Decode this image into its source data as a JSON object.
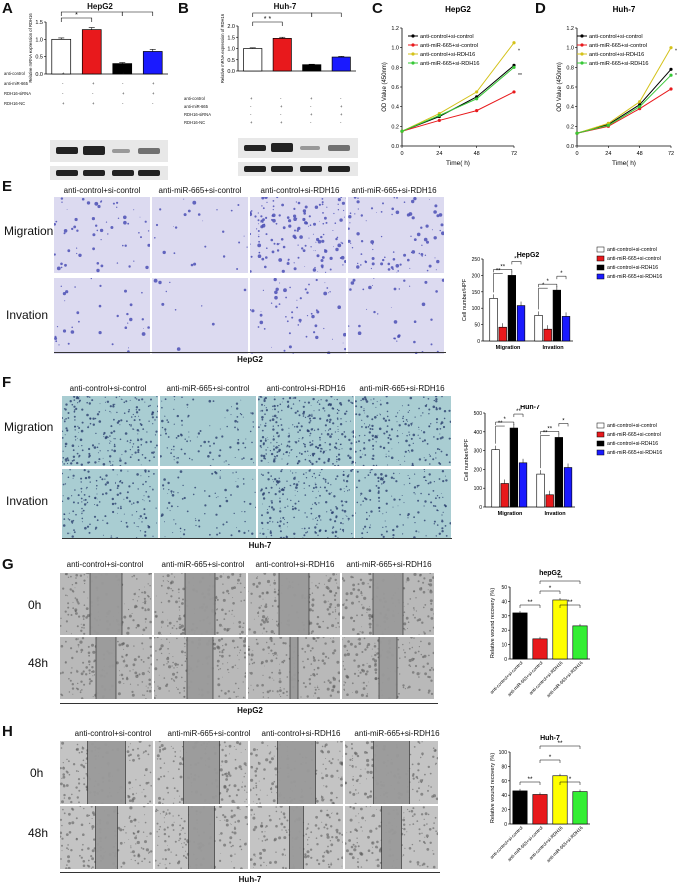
{
  "panels": {
    "A": {
      "letter": "A",
      "title": "HepG2",
      "ylabel": "Relative mRNA expression of RDH16",
      "yticks": [
        "0.0",
        "0.5",
        "1.0",
        "1.5"
      ],
      "row_labels": [
        "anti-control",
        "anti-miR-665",
        "RDH16-siRNA",
        "RDH16-NC"
      ],
      "grid": [
        [
          "+",
          "-",
          "+",
          "-"
        ],
        [
          "-",
          "+",
          "-",
          "+"
        ],
        [
          "-",
          "-",
          "+",
          "+"
        ],
        [
          "+",
          "+",
          "-",
          "-"
        ]
      ],
      "sig": [
        "*",
        "* * *",
        "* *"
      ]
    },
    "B": {
      "letter": "B",
      "title": "Huh-7",
      "ylabel": "Relative mRNA expression of RDH16",
      "yticks": [
        "0.0",
        "0.5",
        "1.0",
        "1.5",
        "2.0"
      ],
      "row_labels": [
        "anti-control",
        "anti-miR-665",
        "RDH16-siRNA",
        "RDH16-NC"
      ],
      "grid": [
        [
          "+",
          "-",
          "+",
          "-"
        ],
        [
          "-",
          "+",
          "-",
          "+"
        ],
        [
          "-",
          "-",
          "+",
          "+"
        ],
        [
          "+",
          "+",
          "-",
          "-"
        ]
      ],
      "sig": [
        "* *",
        "* *",
        "* * * *"
      ]
    },
    "C": {
      "letter": "C",
      "title": "HepG2"
    },
    "D": {
      "letter": "D",
      "title": "Huh-7"
    },
    "E": {
      "letter": "E",
      "conditions": [
        "anti-control+si-control",
        "anti-miR-665+si-control",
        "anti-control+si-RDH16",
        "anti-miR-665+si-RDH16"
      ],
      "rows": [
        "Migration",
        "Invation"
      ],
      "footer": "HepG2",
      "bar_title": "HepG2"
    },
    "F": {
      "letter": "F",
      "conditions": [
        "anti-control+si-control",
        "anti-miR-665+si-control",
        "anti-control+si-RDH16",
        "anti-miR-665+si-RDH16"
      ],
      "rows": [
        "Migration",
        "Invation"
      ],
      "footer": "Huh-7",
      "bar_title": "Huh-7"
    },
    "G": {
      "letter": "G",
      "conditions": [
        "anti-control+si-control",
        "anti-miR-665+si-control",
        "anti-control+si-RDH16",
        "anti-miR-665+si-RDH16"
      ],
      "rows": [
        "0h",
        "48h"
      ],
      "footer": "HepG2",
      "bar_title": "hepG2"
    },
    "H": {
      "letter": "H",
      "conditions": [
        "anti-control+si-control",
        "anti-miR-665+si-control",
        "anti-control+si-RDH16",
        "anti-miR-665+si-RDH16"
      ],
      "rows": [
        "0h",
        "48h"
      ],
      "footer": "Huh-7",
      "bar_title": "Huh-7"
    }
  },
  "colors": {
    "ctrl": "#ffffff",
    "mir": "#e8191c",
    "si": "#000000",
    "combo": "#1a1aff",
    "line_ctrl": "#000000",
    "line_mir": "#e8191c",
    "line_si": "#d4c21a",
    "line_combo": "#37c837",
    "g_ctrl": "#000000",
    "g_mir": "#e8191c",
    "g_si": "#ffff00",
    "g_combo": "#33ee33",
    "crystal": "#4b4fb5",
    "crystal_bg": "#dcdaf0",
    "f_bg": "#a9cdd2",
    "f_dot": "#2a3f6e",
    "scratch": "#9a9a9a"
  },
  "chart_data": [
    {
      "id": "A",
      "type": "bar",
      "title": "HepG2",
      "ylabel": "Relative mRNA expression of RDH16",
      "ylim": [
        0,
        1.5
      ],
      "values": [
        1.0,
        1.28,
        0.3,
        0.65
      ],
      "errors": [
        0.04,
        0.06,
        0.03,
        0.06
      ],
      "colors": [
        "#ffffff",
        "#e8191c",
        "#000000",
        "#1a1aff"
      ]
    },
    {
      "id": "B",
      "type": "bar",
      "title": "Huh-7",
      "ylabel": "Relative mRNA expression of RDH16",
      "ylim": [
        0,
        2.0
      ],
      "values": [
        1.0,
        1.45,
        0.28,
        0.62
      ],
      "errors": [
        0.03,
        0.05,
        0.02,
        0.03
      ],
      "colors": [
        "#ffffff",
        "#e8191c",
        "#000000",
        "#1a1aff"
      ]
    },
    {
      "id": "C",
      "type": "line",
      "title": "HepG2",
      "xlabel": "Time( h)",
      "ylabel": "OD Value (450nm)",
      "x": [
        0,
        24,
        48,
        72
      ],
      "ylim": [
        0,
        1.2
      ],
      "yticks": [
        "0.0",
        "0.2",
        "0.4",
        "0.6",
        "0.8",
        "1.0",
        "1.2"
      ],
      "legend": [
        "anti-control+si-control",
        "anti-miR-665+si-control",
        "anti-control+si-RDH16",
        "anti-miR-665+si-RDH16"
      ],
      "series": [
        {
          "name": "anti-control+si-control",
          "values": [
            0.15,
            0.3,
            0.5,
            0.82
          ]
        },
        {
          "name": "anti-miR-665+si-control",
          "values": [
            0.15,
            0.26,
            0.36,
            0.55
          ]
        },
        {
          "name": "anti-control+si-RDH16",
          "values": [
            0.15,
            0.33,
            0.55,
            1.05
          ]
        },
        {
          "name": "anti-miR-665+si-RDH16",
          "values": [
            0.15,
            0.31,
            0.48,
            0.8
          ]
        }
      ],
      "annotations": [
        "*",
        "**"
      ]
    },
    {
      "id": "D",
      "type": "line",
      "title": "Huh-7",
      "xlabel": "Time( h)",
      "ylabel": "OD Value (450nm)",
      "x": [
        0,
        24,
        48,
        72
      ],
      "ylim": [
        0,
        1.2
      ],
      "yticks": [
        "0.0",
        "0.2",
        "0.4",
        "0.6",
        "0.8",
        "1.0",
        "1.2"
      ],
      "legend": [
        "anti-control+si-control",
        "anti-miR-665+si-control",
        "anti-control+si-RDH16",
        "anti-miR-665+si-RDH16"
      ],
      "series": [
        {
          "name": "anti-control+si-control",
          "values": [
            0.13,
            0.22,
            0.42,
            0.78
          ]
        },
        {
          "name": "anti-miR-665+si-control",
          "values": [
            0.13,
            0.2,
            0.38,
            0.58
          ]
        },
        {
          "name": "anti-control+si-RDH16",
          "values": [
            0.13,
            0.23,
            0.45,
            1.0
          ]
        },
        {
          "name": "anti-miR-665+si-RDH16",
          "values": [
            0.13,
            0.21,
            0.4,
            0.72
          ]
        }
      ],
      "annotations": [
        "*",
        "*"
      ]
    },
    {
      "id": "E",
      "type": "bar",
      "title": "HepG2",
      "ylabel": "Cell number/HPF",
      "categories": [
        "Migration",
        "Invation"
      ],
      "ylim": [
        0,
        250
      ],
      "yticks": [
        "0",
        "50",
        "100",
        "150",
        "200",
        "250"
      ],
      "legend": [
        "anti-control+si-control",
        "anti-miR-665+si-control",
        "anti-control+si-RDH16",
        "anti-miR-665+si-RDH16"
      ],
      "series": [
        {
          "name": "anti-control+si-control",
          "values": [
            130,
            78
          ]
        },
        {
          "name": "anti-miR-665+si-control",
          "values": [
            42,
            36
          ]
        },
        {
          "name": "anti-control+si-RDH16",
          "values": [
            200,
            155
          ]
        },
        {
          "name": "anti-miR-665+si-RDH16",
          "values": [
            108,
            75
          ]
        }
      ],
      "annotations": [
        "**",
        "**",
        "**",
        "*",
        "*",
        "*"
      ]
    },
    {
      "id": "F",
      "type": "bar",
      "title": "Huh-7",
      "ylabel": "Cell number/HPF",
      "categories": [
        "Migration",
        "Invation"
      ],
      "ylim": [
        0,
        500
      ],
      "yticks": [
        "0",
        "100",
        "200",
        "300",
        "400",
        "500"
      ],
      "legend": [
        "anti-control+si-control",
        "anti-miR-665+si-control",
        "anti-control+si-RDH16",
        "anti-miR-665+si-RDH16"
      ],
      "series": [
        {
          "name": "anti-control+si-control",
          "values": [
            305,
            175
          ]
        },
        {
          "name": "anti-miR-665+si-control",
          "values": [
            125,
            65
          ]
        },
        {
          "name": "anti-control+si-RDH16",
          "values": [
            420,
            370
          ]
        },
        {
          "name": "anti-miR-665+si-RDH16",
          "values": [
            235,
            210
          ]
        }
      ],
      "annotations": [
        "**",
        "*",
        "**",
        "**",
        "**",
        "*"
      ]
    },
    {
      "id": "G",
      "type": "bar",
      "title": "hepG2",
      "ylabel": "Relative wound recovery (%)",
      "categories": [
        "anti-control+si-control",
        "anti-miR-665+si-control",
        "anti-control+si-RDH16",
        "anti-miR-665+si-RDH16"
      ],
      "ylim": [
        0,
        50
      ],
      "yticks": [
        "0",
        "10",
        "20",
        "30",
        "40",
        "50"
      ],
      "values": [
        32,
        14,
        41,
        23
      ],
      "colors": [
        "#000000",
        "#e8191c",
        "#ffff00",
        "#33ee33"
      ],
      "annotations": [
        "**",
        "*",
        "**",
        "**"
      ]
    },
    {
      "id": "H",
      "type": "bar",
      "title": "Huh-7",
      "ylabel": "Relative wound recovery (%)",
      "categories": [
        "anti-control+si-control",
        "anti-miR-665+si-control",
        "anti-control+si-RDH16",
        "anti-miR-665+si-RDH16"
      ],
      "ylim": [
        0,
        100
      ],
      "yticks": [
        "0",
        "20",
        "40",
        "60",
        "80",
        "100"
      ],
      "values": [
        46,
        41,
        67,
        45
      ],
      "colors": [
        "#000000",
        "#e8191c",
        "#ffff00",
        "#33ee33"
      ],
      "annotations": [
        "**",
        "*",
        "**",
        "*"
      ]
    }
  ]
}
